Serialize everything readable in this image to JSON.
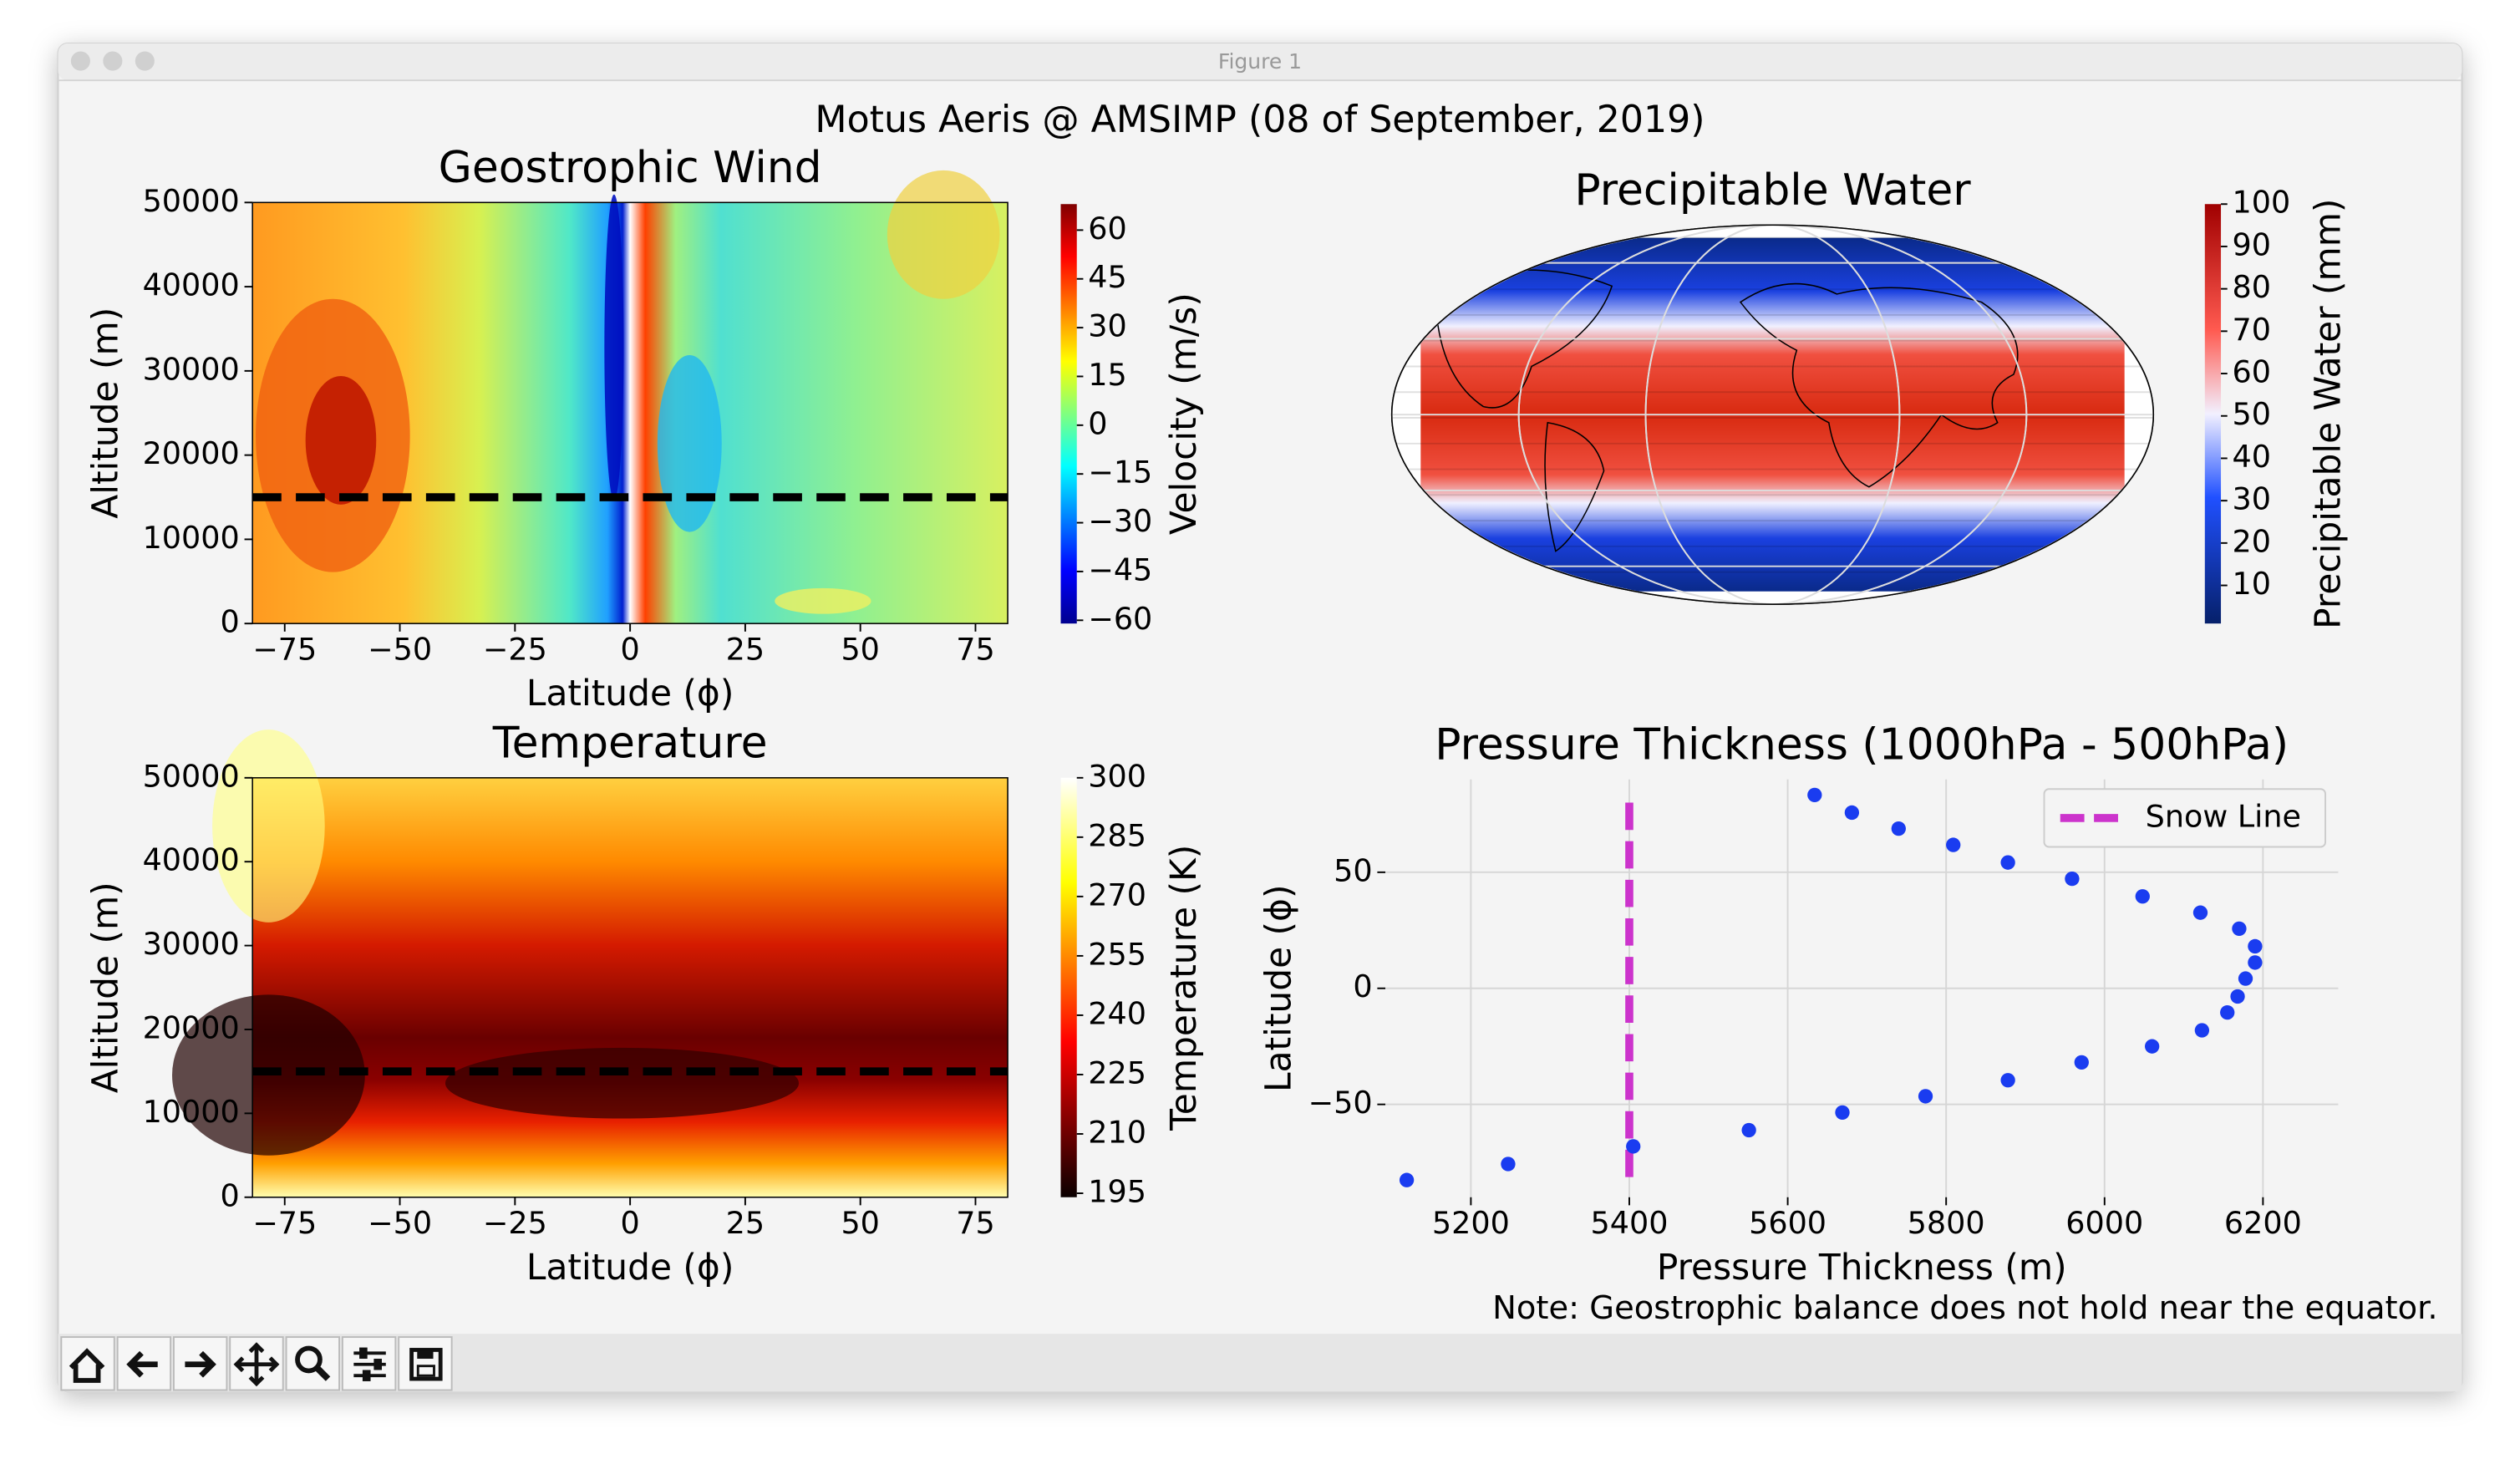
{
  "window_title": "Figure 1",
  "suptitle": "Motus Aeris @ AMSIMP (08 of September, 2019)",
  "note": "Note: Geostrophic balance does not hold near the equator.",
  "chart_data": [
    {
      "type": "contour",
      "title": "Geostrophic Wind",
      "x_label": "Latitude (ϕ)",
      "y_label": "Altitude (m)",
      "xlim": [
        -82,
        82
      ],
      "ylim": [
        0,
        50000
      ],
      "xticks": [
        {
          "value": -75,
          "label": "−75"
        },
        {
          "value": -50,
          "label": "−50"
        },
        {
          "value": -25,
          "label": "−25"
        },
        0,
        25,
        50,
        75
      ],
      "yticks": [
        0,
        10000,
        20000,
        30000,
        40000,
        50000
      ],
      "hline": 15000,
      "colormap": "jet",
      "colorbar_label": "Velocity (m/s)",
      "clim": [
        -61,
        68
      ],
      "colorbar_ticks": [
        {
          "value": -60,
          "label": "−60"
        },
        {
          "value": -45,
          "label": "−45"
        },
        {
          "value": -30,
          "label": "−30"
        },
        {
          "value": -15,
          "label": "−15"
        },
        0,
        15,
        30,
        45,
        60
      ]
    },
    {
      "type": "contour",
      "title": "Temperature",
      "x_label": "Latitude (ϕ)",
      "y_label": "Altitude (m)",
      "xlim": [
        -82,
        82
      ],
      "ylim": [
        0,
        50000
      ],
      "xticks": [
        {
          "value": -75,
          "label": "−75"
        },
        {
          "value": -50,
          "label": "−50"
        },
        {
          "value": -25,
          "label": "−25"
        },
        0,
        25,
        50,
        75
      ],
      "yticks": [
        0,
        10000,
        20000,
        30000,
        40000,
        50000
      ],
      "hline": 15000,
      "colormap": "hot",
      "colorbar_label": "Temperature (K)",
      "clim": [
        194,
        300
      ],
      "colorbar_ticks": [
        195,
        210,
        225,
        240,
        255,
        270,
        285,
        300
      ]
    },
    {
      "type": "map",
      "title": "Precipitable Water",
      "colormap": "seismic",
      "colorbar_label": "Precipitable Water (mm)",
      "clim": [
        1,
        100
      ],
      "colorbar_ticks": [
        10,
        20,
        30,
        40,
        50,
        60,
        70,
        80,
        90,
        100
      ]
    },
    {
      "type": "scatter",
      "title": "Pressure Thickness (1000hPa - 500hPa)",
      "x_label": "Pressure Thickness (m)",
      "y_label": "Latitude (ϕ)",
      "xlim": [
        5092,
        6295
      ],
      "ylim": [
        -90,
        90
      ],
      "xticks": [
        5200,
        5400,
        5600,
        5800,
        6000,
        6200
      ],
      "yticks": [
        {
          "value": -50,
          "label": "−50"
        },
        0,
        50
      ],
      "grid": true,
      "legend": "upper right",
      "color": "#1a3cf0",
      "x": [
        5634,
        5681,
        5740,
        5809,
        5878,
        5959,
        6048,
        6121,
        6170,
        6190,
        6190,
        6178,
        6168,
        6155,
        6123,
        6060,
        5971,
        5878,
        5774,
        5669,
        5551,
        5405,
        5247,
        5119
      ],
      "values": [
        83.3,
        75.7,
        68.8,
        61.8,
        54.2,
        47.2,
        39.6,
        32.6,
        25.7,
        18.1,
        11.1,
        4.2,
        -3.5,
        -10.4,
        -18.1,
        -25,
        -31.9,
        -39.6,
        -46.5,
        -53.5,
        -61.1,
        -68.1,
        -75.7,
        -82.6
      ],
      "vline": {
        "name": "Snow Line",
        "value": 5400,
        "color": "#cc33cc"
      }
    }
  ]
}
